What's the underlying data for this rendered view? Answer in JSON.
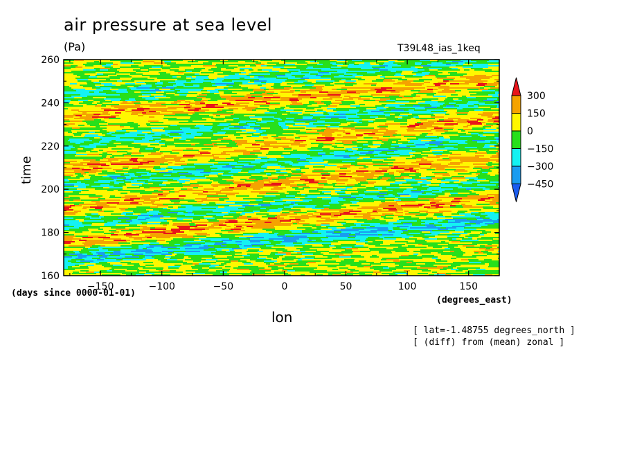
{
  "chart_data": {
    "type": "heatmap",
    "title": "air pressure at sea level",
    "units": "(Pa)",
    "run_label": "T39L48_ias_1keq",
    "xlabel": "lon",
    "ylabel": "time",
    "x_units": "(degrees_east)",
    "y_units": "(days since 0000-01-01)",
    "xlim": [
      -180,
      175
    ],
    "ylim": [
      160,
      260
    ],
    "xticks": [
      -150,
      -100,
      -50,
      0,
      50,
      100,
      150
    ],
    "yticks": [
      160,
      180,
      200,
      220,
      240,
      260
    ],
    "notes": [
      "[ lat=-1.48755 degrees_north ]",
      "[ (diff) from (mean) zonal ]"
    ],
    "colorbar": {
      "levels": [
        300,
        150,
        0,
        -150,
        -300,
        -450
      ],
      "colors": [
        "#e8141a",
        "#f5a300",
        "#fff700",
        "#27e01b",
        "#14f2f2",
        "#1a9cf0",
        "#1a5cf0"
      ],
      "extend": "both"
    },
    "bands": [
      {
        "t": 177,
        "slope": 0.05,
        "sign": -1,
        "amp": 280
      },
      {
        "t": 186,
        "slope": 0.06,
        "sign": 1,
        "amp": 230
      },
      {
        "t": 193,
        "slope": 0.05,
        "sign": -1,
        "amp": 170
      },
      {
        "t": 203,
        "slope": 0.07,
        "sign": 1,
        "amp": 200
      },
      {
        "t": 213,
        "slope": 0.06,
        "sign": -1,
        "amp": 190
      },
      {
        "t": 221,
        "slope": 0.07,
        "sign": 1,
        "amp": 200
      },
      {
        "t": 231,
        "slope": 0.06,
        "sign": -1,
        "amp": 180
      },
      {
        "t": 242,
        "slope": 0.05,
        "sign": 1,
        "amp": 200
      },
      {
        "t": 252,
        "slope": 0.05,
        "sign": -1,
        "amp": 170
      }
    ]
  },
  "colorbar_labels": [
    "300",
    "150",
    "0",
    "−150",
    "−300",
    "−450"
  ],
  "x_tick_labels": [
    "−150",
    "−100",
    "−50",
    "0",
    "50",
    "100",
    "150"
  ],
  "y_tick_labels": [
    "160",
    "180",
    "200",
    "220",
    "240",
    "260"
  ]
}
